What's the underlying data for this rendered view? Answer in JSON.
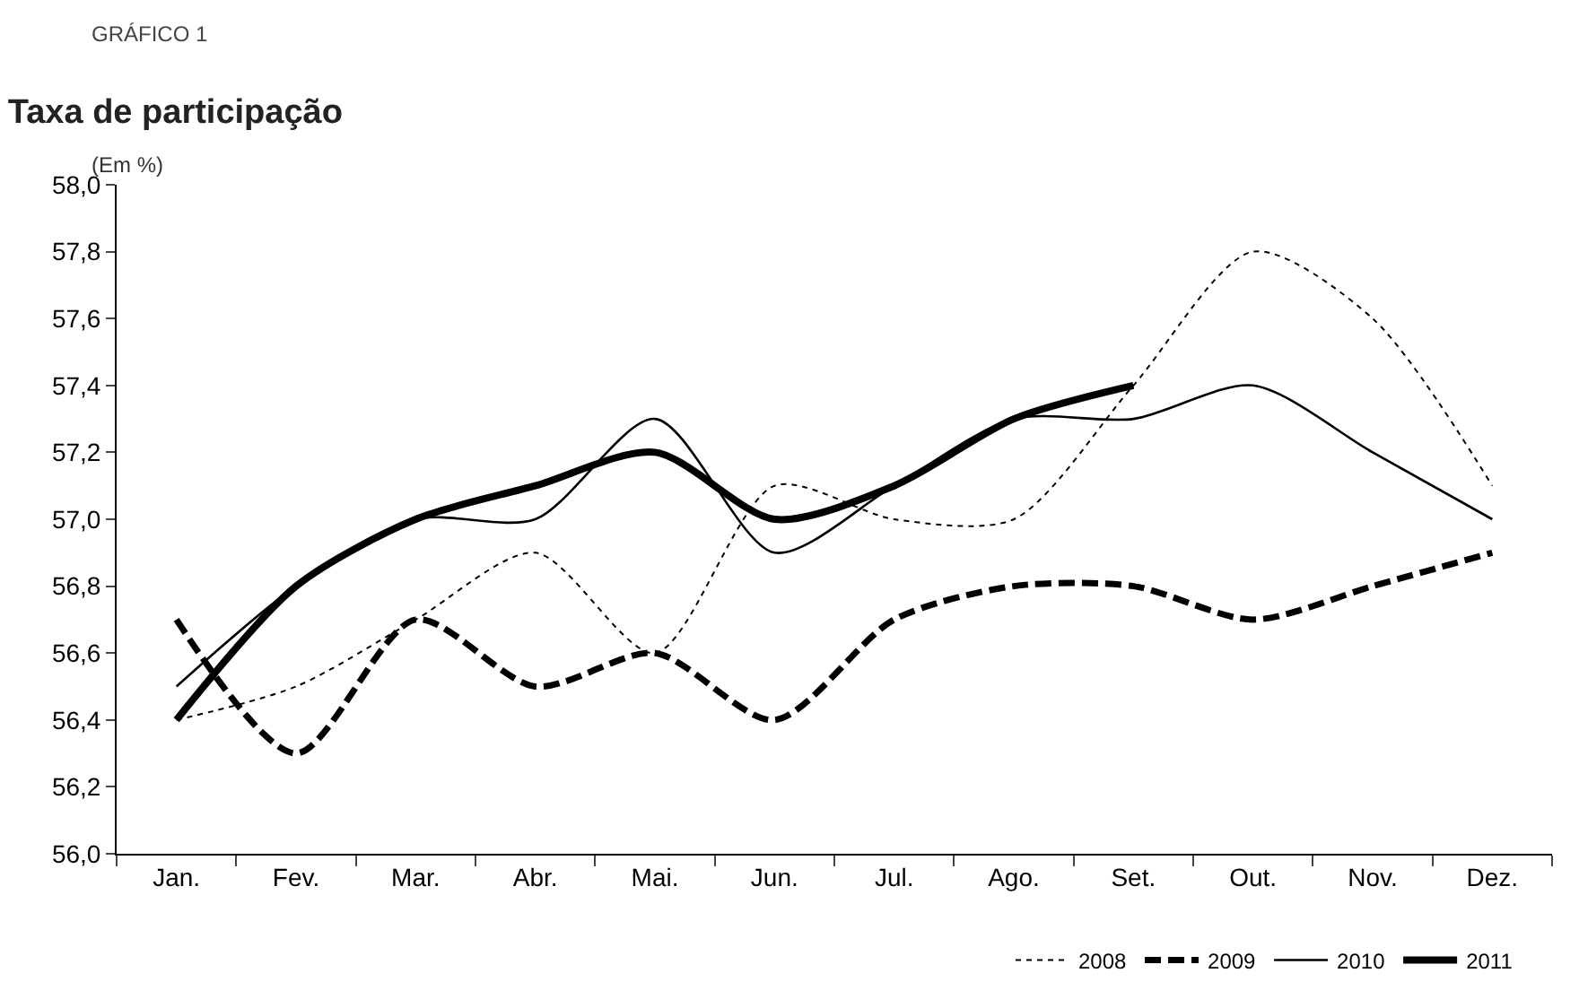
{
  "chart_data": {
    "type": "line",
    "title": "Taxa de participação",
    "subtitle": "(Em %)",
    "annotations": [
      "GRÁFICO 1"
    ],
    "categories": [
      "Jan.",
      "Fev.",
      "Mar.",
      "Abr.",
      "Mai.",
      "Jun.",
      "Jul.",
      "Ago.",
      "Set.",
      "Out.",
      "Nov.",
      "Dez."
    ],
    "series": [
      {
        "name": "2008",
        "color": "#000000",
        "line_style": "dotted",
        "values": [
          56.4,
          56.5,
          56.7,
          56.9,
          56.6,
          57.1,
          57.0,
          57.0,
          57.4,
          57.8,
          57.6,
          57.1
        ]
      },
      {
        "name": "2009",
        "color": "#000000",
        "line_style": "dashed",
        "values": [
          56.7,
          56.3,
          56.7,
          56.5,
          56.6,
          56.4,
          56.7,
          56.8,
          56.8,
          56.7,
          56.8,
          56.9
        ]
      },
      {
        "name": "2010",
        "color": "#000000",
        "line_style": "solid",
        "values": [
          56.5,
          56.8,
          57.0,
          57.0,
          57.3,
          56.9,
          57.1,
          57.3,
          57.3,
          57.4,
          57.2,
          57.0
        ]
      },
      {
        "name": "2011",
        "color": "#000000",
        "line_style": "solid",
        "values": [
          56.4,
          56.8,
          57.0,
          57.1,
          57.2,
          57.0,
          57.1,
          57.3,
          57.4,
          null,
          null,
          null
        ]
      }
    ],
    "ylim": [
      56,
      58
    ],
    "yticks": [
      {
        "value": 56,
        "label": "56,0"
      },
      {
        "value": 56.2,
        "label": "56,2"
      },
      {
        "value": 56.4,
        "label": "56,4"
      },
      {
        "value": 56.6,
        "label": "56,6"
      },
      {
        "value": 56.8,
        "label": "56,8"
      },
      {
        "value": 57,
        "label": "57,0"
      },
      {
        "value": 57.2,
        "label": "57,2"
      },
      {
        "value": 57.4,
        "label": "57,4"
      },
      {
        "value": 57.6,
        "label": "57,6"
      },
      {
        "value": 57.8,
        "label": "57,8"
      },
      {
        "value": 58,
        "label": "58,0"
      }
    ],
    "grid": false,
    "legend": "bottom",
    "marker": "none"
  }
}
